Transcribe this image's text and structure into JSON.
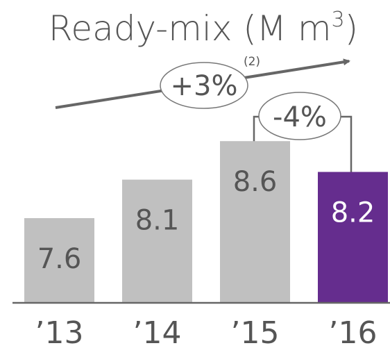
{
  "title": {
    "main": "Ready-mix (M m",
    "superscript": "3",
    "close": ")"
  },
  "trend": {
    "label": "+3%",
    "footnote": "(2)"
  },
  "change": {
    "label": "-4%"
  },
  "colors": {
    "bar_default": "#c0c0c0",
    "bar_highlight": "#652d8e",
    "text": "#555555",
    "axis": "#666666"
  },
  "chart_data": {
    "type": "bar",
    "categories": [
      "’13",
      "’14",
      "’15",
      "’16"
    ],
    "values": [
      7.6,
      8.1,
      8.6,
      8.2
    ],
    "highlight_index": 3,
    "ylim": [
      6.5,
      8.8
    ],
    "xlabel": "",
    "ylabel": "",
    "grid": false,
    "legend": "none"
  }
}
